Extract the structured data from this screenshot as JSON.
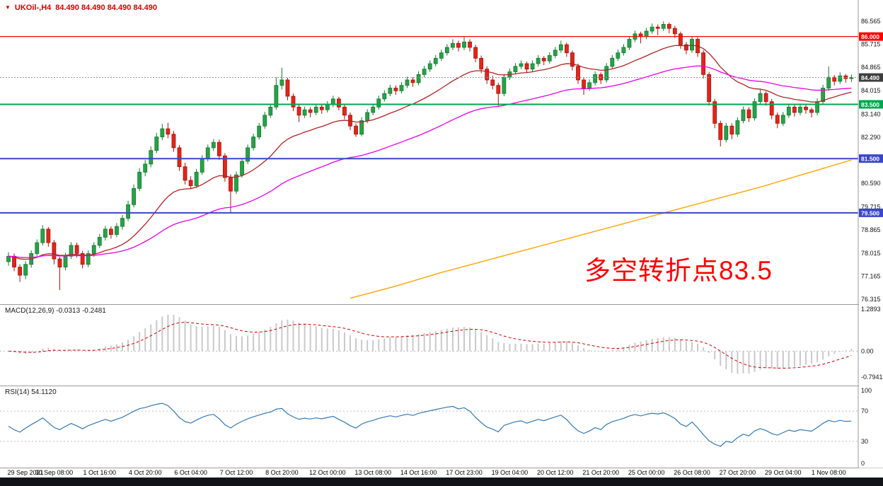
{
  "quote_bar": {
    "symbol": "UKOil-,H4",
    "ohlc_values": "84.490 84.490 84.490 84.490"
  },
  "panels": {
    "macd_label": "MACD(12,26,9) -0.0313 -0.2481",
    "rsi_label": "RSI(14) 54.1120"
  },
  "annotation": {
    "text": "多空转折点83.5",
    "color": "#FF0000"
  },
  "chart_data": {
    "type": "candlestick",
    "symbol": "UKOil-",
    "timeframe": "H4",
    "title": "UKOil- H4 candlestick chart with MACD and RSI",
    "ohlc": [
      [
        77.7,
        78.05,
        77.55,
        77.9
      ],
      [
        77.9,
        78.0,
        77.35,
        77.5
      ],
      [
        77.5,
        77.6,
        76.95,
        77.2
      ],
      [
        77.2,
        77.72,
        77.05,
        77.6
      ],
      [
        77.6,
        78.12,
        77.48,
        78.0
      ],
      [
        78.0,
        78.52,
        77.9,
        78.4
      ],
      [
        78.4,
        79.05,
        78.3,
        78.9
      ],
      [
        78.9,
        78.98,
        78.25,
        78.4
      ],
      [
        78.4,
        78.5,
        77.6,
        77.8
      ],
      [
        77.8,
        77.88,
        76.65,
        77.5
      ],
      [
        77.5,
        78.02,
        77.38,
        77.9
      ],
      [
        77.9,
        78.42,
        77.8,
        78.3
      ],
      [
        78.3,
        78.4,
        77.85,
        78.0
      ],
      [
        78.0,
        78.1,
        77.45,
        77.6
      ],
      [
        77.6,
        78.12,
        77.5,
        78.0
      ],
      [
        78.0,
        78.42,
        77.88,
        78.3
      ],
      [
        78.3,
        78.72,
        78.2,
        78.6
      ],
      [
        78.6,
        79.02,
        78.48,
        78.9
      ],
      [
        78.9,
        79.0,
        78.55,
        78.7
      ],
      [
        78.7,
        79.12,
        78.6,
        79.0
      ],
      [
        79.0,
        79.42,
        78.88,
        79.3
      ],
      [
        79.3,
        79.95,
        79.2,
        79.8
      ],
      [
        79.8,
        80.55,
        79.7,
        80.4
      ],
      [
        80.4,
        81.15,
        80.3,
        81.0
      ],
      [
        81.0,
        81.45,
        80.85,
        81.3
      ],
      [
        81.3,
        81.95,
        81.18,
        81.8
      ],
      [
        81.8,
        82.45,
        81.7,
        82.3
      ],
      [
        82.3,
        82.78,
        82.18,
        82.6
      ],
      [
        82.6,
        82.82,
        82.25,
        82.4
      ],
      [
        82.4,
        82.52,
        81.75,
        81.9
      ],
      [
        81.9,
        82.0,
        81.05,
        81.2
      ],
      [
        81.2,
        81.35,
        80.55,
        80.7
      ],
      [
        80.7,
        80.85,
        80.38,
        80.5
      ],
      [
        80.5,
        81.12,
        80.42,
        81.0
      ],
      [
        81.0,
        81.62,
        80.9,
        81.5
      ],
      [
        81.5,
        82.02,
        81.4,
        81.9
      ],
      [
        81.9,
        82.22,
        81.78,
        82.1
      ],
      [
        82.1,
        82.2,
        81.45,
        81.6
      ],
      [
        81.6,
        81.7,
        80.65,
        80.8
      ],
      [
        80.8,
        80.92,
        79.5,
        80.3
      ],
      [
        80.3,
        81.02,
        80.2,
        80.9
      ],
      [
        80.9,
        81.52,
        80.8,
        81.4
      ],
      [
        81.4,
        82.02,
        81.3,
        81.9
      ],
      [
        81.9,
        82.42,
        81.8,
        82.3
      ],
      [
        82.3,
        82.82,
        82.2,
        82.7
      ],
      [
        82.7,
        83.22,
        82.6,
        83.1
      ],
      [
        83.1,
        83.52,
        83.0,
        83.4
      ],
      [
        83.4,
        84.5,
        83.3,
        84.2
      ],
      [
        84.2,
        84.85,
        84.05,
        84.4
      ],
      [
        84.4,
        84.48,
        83.65,
        83.8
      ],
      [
        83.8,
        83.9,
        83.25,
        83.4
      ],
      [
        83.4,
        83.52,
        82.85,
        83.1
      ],
      [
        83.1,
        83.42,
        83.0,
        83.3
      ],
      [
        83.3,
        83.4,
        83.02,
        83.2
      ],
      [
        83.2,
        83.52,
        83.1,
        83.4
      ],
      [
        83.4,
        83.5,
        83.15,
        83.3
      ],
      [
        83.3,
        83.62,
        83.2,
        83.5
      ],
      [
        83.5,
        83.82,
        83.4,
        83.7
      ],
      [
        83.7,
        83.78,
        83.28,
        83.4
      ],
      [
        83.4,
        83.5,
        82.95,
        83.1
      ],
      [
        83.1,
        83.2,
        82.55,
        82.7
      ],
      [
        82.7,
        82.8,
        82.3,
        82.4
      ],
      [
        82.4,
        83.02,
        82.32,
        82.9
      ],
      [
        82.9,
        83.32,
        82.8,
        83.2
      ],
      [
        83.2,
        83.52,
        83.1,
        83.4
      ],
      [
        83.4,
        83.82,
        83.3,
        83.7
      ],
      [
        83.7,
        84.02,
        83.6,
        83.9
      ],
      [
        83.9,
        84.22,
        83.8,
        84.1
      ],
      [
        84.1,
        84.2,
        83.85,
        84.0
      ],
      [
        84.0,
        84.32,
        83.9,
        84.2
      ],
      [
        84.2,
        84.52,
        84.1,
        84.4
      ],
      [
        84.4,
        84.5,
        84.15,
        84.3
      ],
      [
        84.3,
        84.72,
        84.2,
        84.6
      ],
      [
        84.6,
        84.92,
        84.5,
        84.8
      ],
      [
        84.8,
        85.12,
        84.7,
        85.0
      ],
      [
        85.0,
        85.32,
        84.9,
        85.2
      ],
      [
        85.2,
        85.52,
        85.1,
        85.4
      ],
      [
        85.4,
        85.72,
        85.3,
        85.6
      ],
      [
        85.6,
        85.9,
        85.5,
        85.75
      ],
      [
        85.75,
        85.85,
        85.45,
        85.6
      ],
      [
        85.6,
        86.0,
        85.5,
        85.8
      ],
      [
        85.8,
        85.9,
        85.45,
        85.6
      ],
      [
        85.6,
        85.7,
        85.05,
        85.2
      ],
      [
        85.2,
        85.3,
        84.65,
        84.8
      ],
      [
        84.8,
        84.9,
        84.25,
        84.4
      ],
      [
        84.4,
        84.55,
        84.05,
        84.2
      ],
      [
        84.2,
        84.3,
        83.45,
        83.9
      ],
      [
        83.9,
        84.62,
        83.8,
        84.5
      ],
      [
        84.5,
        84.82,
        84.4,
        84.7
      ],
      [
        84.7,
        85.02,
        84.6,
        84.9
      ],
      [
        84.9,
        85.12,
        84.8,
        85.0
      ],
      [
        85.0,
        85.08,
        84.65,
        84.8
      ],
      [
        84.8,
        85.12,
        84.7,
        85.0
      ],
      [
        85.0,
        85.32,
        84.9,
        85.2
      ],
      [
        85.2,
        85.28,
        84.95,
        85.1
      ],
      [
        85.1,
        85.42,
        85.0,
        85.3
      ],
      [
        85.3,
        85.62,
        85.2,
        85.5
      ],
      [
        85.5,
        85.85,
        85.4,
        85.7
      ],
      [
        85.7,
        85.78,
        85.25,
        85.4
      ],
      [
        85.4,
        85.48,
        84.75,
        84.9
      ],
      [
        84.9,
        85.0,
        84.25,
        84.4
      ],
      [
        84.4,
        84.5,
        83.85,
        84.1
      ],
      [
        84.1,
        84.42,
        84.0,
        84.3
      ],
      [
        84.3,
        84.72,
        84.2,
        84.6
      ],
      [
        84.6,
        84.68,
        84.25,
        84.4
      ],
      [
        84.4,
        85.02,
        84.3,
        84.9
      ],
      [
        84.9,
        85.32,
        84.8,
        85.2
      ],
      [
        85.2,
        85.52,
        85.1,
        85.4
      ],
      [
        85.4,
        85.72,
        85.3,
        85.6
      ],
      [
        85.6,
        86.02,
        85.5,
        85.9
      ],
      [
        85.9,
        86.22,
        85.8,
        86.1
      ],
      [
        86.1,
        86.18,
        85.75,
        86.0
      ],
      [
        86.0,
        86.32,
        85.9,
        86.2
      ],
      [
        86.2,
        86.48,
        86.1,
        86.35
      ],
      [
        86.35,
        86.45,
        86.05,
        86.3
      ],
      [
        86.3,
        86.56,
        86.2,
        86.45
      ],
      [
        86.45,
        86.52,
        86.12,
        86.3
      ],
      [
        86.3,
        86.4,
        85.95,
        86.1
      ],
      [
        86.1,
        86.18,
        85.55,
        85.7
      ],
      [
        85.7,
        85.8,
        85.35,
        85.5
      ],
      [
        85.5,
        86.0,
        85.4,
        85.9
      ],
      [
        85.9,
        85.98,
        85.25,
        85.4
      ],
      [
        85.4,
        85.5,
        84.45,
        84.6
      ],
      [
        84.6,
        84.7,
        83.45,
        83.6
      ],
      [
        83.6,
        83.7,
        82.62,
        82.8
      ],
      [
        82.8,
        82.9,
        81.95,
        82.2
      ],
      [
        82.2,
        82.82,
        82.1,
        82.7
      ],
      [
        82.7,
        82.8,
        82.22,
        82.4
      ],
      [
        82.4,
        83.02,
        82.3,
        82.9
      ],
      [
        82.9,
        83.42,
        82.8,
        83.3
      ],
      [
        83.3,
        83.4,
        82.85,
        83.0
      ],
      [
        83.0,
        83.72,
        82.9,
        83.6
      ],
      [
        83.6,
        84.05,
        83.5,
        83.9
      ],
      [
        83.9,
        83.98,
        83.45,
        83.6
      ],
      [
        83.6,
        83.7,
        82.95,
        83.1
      ],
      [
        83.1,
        83.2,
        82.62,
        82.8
      ],
      [
        82.8,
        83.22,
        82.7,
        83.1
      ],
      [
        83.1,
        83.52,
        83.0,
        83.4
      ],
      [
        83.4,
        83.48,
        83.05,
        83.2
      ],
      [
        83.2,
        83.52,
        83.1,
        83.4
      ],
      [
        83.4,
        83.48,
        83.15,
        83.3
      ],
      [
        83.3,
        83.38,
        83.02,
        83.2
      ],
      [
        83.2,
        83.72,
        83.1,
        83.6
      ],
      [
        83.6,
        84.22,
        83.5,
        84.1
      ],
      [
        84.1,
        84.9,
        84.0,
        84.5
      ],
      [
        84.5,
        84.58,
        84.2,
        84.35
      ],
      [
        84.35,
        84.68,
        84.25,
        84.55
      ],
      [
        84.55,
        84.62,
        84.3,
        84.45
      ],
      [
        84.45,
        84.6,
        84.32,
        84.49
      ]
    ],
    "time_labels": [
      {
        "i": 0,
        "t": "29 Sep 2021"
      },
      {
        "i": 8,
        "t": "30 Sep 08:00"
      },
      {
        "i": 16,
        "t": "1 Oct 16:00"
      },
      {
        "i": 24,
        "t": "4 Oct 20:00"
      },
      {
        "i": 32,
        "t": "6 Oct 04:00"
      },
      {
        "i": 40,
        "t": "7 Oct 12:00"
      },
      {
        "i": 48,
        "t": "8 Oct 20:00"
      },
      {
        "i": 56,
        "t": "12 Oct 00:00"
      },
      {
        "i": 64,
        "t": "13 Oct 08:00"
      },
      {
        "i": 72,
        "t": "14 Oct 16:00"
      },
      {
        "i": 80,
        "t": "17 Oct 23:00"
      },
      {
        "i": 88,
        "t": "19 Oct 04:00"
      },
      {
        "i": 96,
        "t": "20 Oct 12:00"
      },
      {
        "i": 104,
        "t": "21 Oct 20:00"
      },
      {
        "i": 112,
        "t": "25 Oct 00:00"
      },
      {
        "i": 120,
        "t": "26 Oct 08:00"
      },
      {
        "i": 128,
        "t": "27 Oct 20:00"
      },
      {
        "i": 136,
        "t": "29 Oct 04:00"
      },
      {
        "i": 144,
        "t": "1 Nov 08:00"
      }
    ],
    "price_axis_labels": [
      "86.565",
      "85.715",
      "84.865",
      "84.015",
      "83.140",
      "82.290",
      "80.590",
      "79.715",
      "78.865",
      "78.015",
      "77.165",
      "76.315"
    ],
    "price_tags": [
      {
        "text": "86.000",
        "price": 86.0,
        "bg": "#FF0000"
      },
      {
        "text": "84.490",
        "price": 84.49,
        "bg": "#3F3F3F"
      },
      {
        "text": "83.500",
        "price": 83.5,
        "bg": "#00A651"
      },
      {
        "text": "81.500",
        "price": 81.5,
        "bg": "#3A46C8"
      },
      {
        "text": "79.500",
        "price": 79.5,
        "bg": "#3A46C8"
      }
    ],
    "hlines": [
      {
        "price": 86.0,
        "color": "#FF0000",
        "width": 1.2
      },
      {
        "price": 83.5,
        "color": "#00A651",
        "width": 2
      },
      {
        "price": 81.5,
        "color": "#3A46C8",
        "width": 2
      },
      {
        "price": 79.5,
        "color": "#3A46C8",
        "width": 2
      }
    ],
    "current_price": 84.49,
    "candle_colors": {
      "up_fill": "#29A148",
      "up_stroke": "#117A2E",
      "down_fill": "#E2251B",
      "down_stroke": "#A81208"
    },
    "moving_averages": {
      "fast": {
        "period": 21,
        "color": "#B22222"
      },
      "mid": {
        "period": 55,
        "color": "#E800E8"
      },
      "slow": {
        "color": "#FFA500",
        "points": [
          [
            60,
            76.35
          ],
          [
            68,
            76.8
          ],
          [
            76,
            77.3
          ],
          [
            84,
            77.75
          ],
          [
            92,
            78.2
          ],
          [
            100,
            78.65
          ],
          [
            108,
            79.1
          ],
          [
            116,
            79.55
          ],
          [
            124,
            80.0
          ],
          [
            132,
            80.45
          ],
          [
            140,
            80.95
          ],
          [
            148,
            81.45
          ]
        ]
      }
    },
    "macd": {
      "params": [
        12,
        26,
        9
      ],
      "current_values": "-0.0313 -0.2481",
      "axis": [
        {
          "text": "1.2893",
          "value": 1.2893
        },
        {
          "text": "0.00",
          "value": 0
        },
        {
          "text": "-0.7941",
          "value": -0.7941
        }
      ],
      "hist_color": "#C9C9C9",
      "signal_color": "#D00000"
    },
    "rsi": {
      "period": 14,
      "current_value": "54.1120",
      "levels": [
        70,
        30
      ],
      "axis": [
        {
          "text": "100",
          "value": 100
        },
        {
          "text": "70",
          "value": 70
        },
        {
          "text": "30",
          "value": 30
        },
        {
          "text": "0",
          "value": 0
        }
      ],
      "color": "#3379B5"
    },
    "layout_hints": {
      "grid": false,
      "legend": false,
      "y_range_main": [
        76.315,
        86.565
      ],
      "y_range_macd": [
        -0.7941,
        1.2893
      ],
      "y_range_rsi": [
        0,
        100
      ]
    }
  }
}
